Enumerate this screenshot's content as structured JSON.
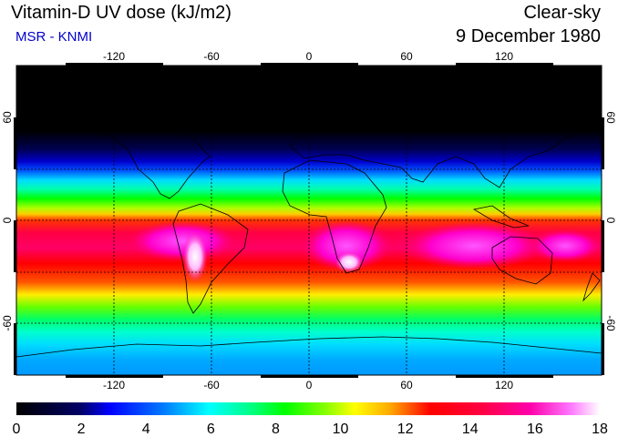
{
  "header": {
    "title": "Vitamin-D UV dose (kJ/m2)",
    "credit": "MSR - KNMI",
    "condition": "Clear-sky",
    "date": "9 December 1980"
  },
  "map": {
    "lon_ticks": [
      "-120",
      "-60",
      "0",
      "60",
      "120"
    ],
    "lat_ticks_left": [
      "60",
      "0",
      "-60"
    ],
    "lat_ticks_right": [
      "60",
      "0",
      "-60"
    ],
    "lon_range": [
      -180,
      180
    ],
    "lat_range": [
      -90,
      90
    ]
  },
  "colorbar": {
    "labels": [
      "0",
      "2",
      "4",
      "6",
      "8",
      "10",
      "12",
      "14",
      "16",
      "18"
    ],
    "min": 0,
    "max": 18
  },
  "colors": {
    "credit": "#0000cc"
  }
}
